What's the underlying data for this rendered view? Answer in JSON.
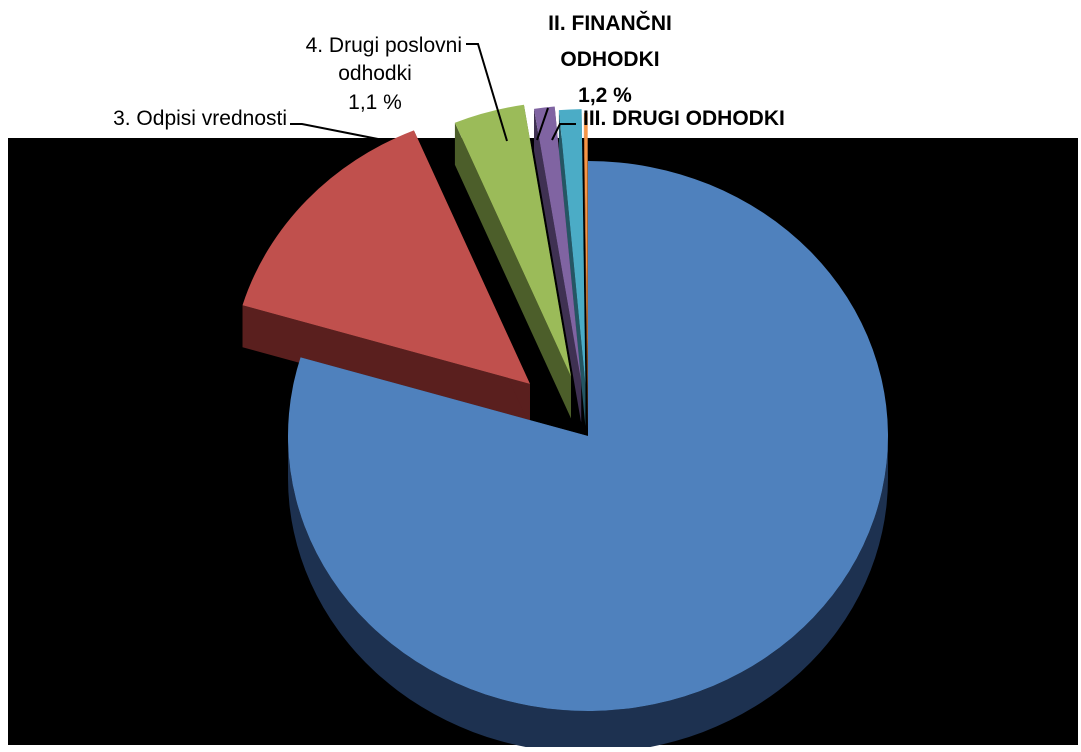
{
  "chart_data": {
    "type": "pie",
    "style": "3d-exploded",
    "legend": "none",
    "slices": [
      {
        "key": "blue",
        "label": "",
        "value_text": "",
        "bold": false,
        "value": 79.3,
        "top": "#4f81bd",
        "side": "#2c4a70",
        "side_dark": "#1d3150"
      },
      {
        "key": "red",
        "label": "",
        "value_text": "",
        "bold": false,
        "value": 14.0,
        "top": "#c0504d",
        "side": "#5a1f1e",
        "side_dark": "#3e1514"
      },
      {
        "key": "green",
        "label": "3. Odpisi vrednosti",
        "value_text": "",
        "bold": false,
        "value": 3.8,
        "top": "#9bbb59",
        "side": "#4c5e2a",
        "side_dark": "#374420"
      },
      {
        "key": "purple",
        "label": "4. Drugi poslovni odhodki",
        "label_lines": [
          "4. Drugi poslovni",
          "odhodki"
        ],
        "value_text": "1,1 %",
        "bold": false,
        "value": 1.1,
        "top": "#8064a2",
        "side": "#3f3152",
        "side_dark": "#2c2239"
      },
      {
        "key": "teal",
        "label": "II. FINANČNI ODHODKI",
        "label_lines": [
          "II. FINANČNI",
          "ODHODKI"
        ],
        "value_text": "1,2 %",
        "bold": true,
        "value": 1.2,
        "top": "#4bacc6",
        "side": "#245663",
        "side_dark": "#193c45"
      },
      {
        "key": "orange",
        "label": "III. DRUGI ODHODKI",
        "value_text": "",
        "bold": true,
        "value": 0.2,
        "top": "#f79646",
        "side": "#7a4820",
        "side_dark": "#5a3517"
      }
    ],
    "colors": {
      "plot_background": "#000000",
      "page_background": "#ffffff",
      "label_text": "#000000",
      "leader_line": "#000000"
    }
  }
}
